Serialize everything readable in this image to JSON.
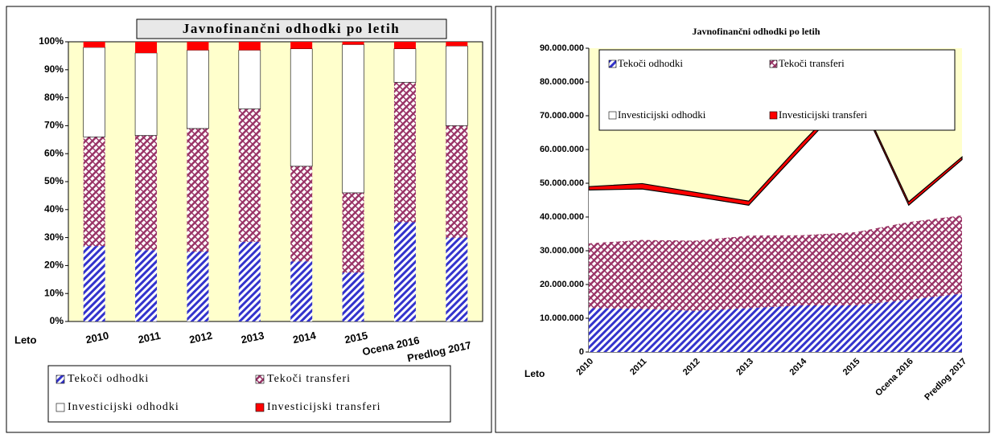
{
  "chart_data": [
    {
      "type": "bar",
      "stacked": true,
      "title": "Javnofinančni odhodki po letih",
      "x_label": "Leto",
      "categories": [
        "2010",
        "2011",
        "2012",
        "2013",
        "2014",
        "2015",
        "Ocena 2016",
        "Predlog 2017"
      ],
      "series": [
        {
          "name": "Tekoči odhodki",
          "color": "#3333cc",
          "pattern": "hatch",
          "values": [
            27,
            25.5,
            25,
            28.5,
            21.5,
            17.5,
            35.5,
            30
          ]
        },
        {
          "name": "Tekoči transferi",
          "color": "#993366",
          "pattern": "crosshatch",
          "values": [
            39,
            41,
            44,
            47.5,
            34,
            28.5,
            50,
            40
          ]
        },
        {
          "name": "Investicijski odhodki",
          "color": "#ffffff",
          "pattern": "solid",
          "values": [
            32,
            29.5,
            28,
            21,
            42,
            53,
            12,
            28.5
          ]
        },
        {
          "name": "Investicijski transferi",
          "color": "#ff0000",
          "pattern": "solid",
          "values": [
            2,
            4,
            3,
            3,
            2.5,
            1,
            2.5,
            1.5
          ]
        }
      ],
      "ylim": [
        0,
        100
      ],
      "yticks": [
        {
          "value": 0,
          "label": "0%"
        },
        {
          "value": 10,
          "label": "10%"
        },
        {
          "value": 20,
          "label": "20%"
        },
        {
          "value": 30,
          "label": "30%"
        },
        {
          "value": 40,
          "label": "40%"
        },
        {
          "value": 50,
          "label": "50%"
        },
        {
          "value": 60,
          "label": "60%"
        },
        {
          "value": 70,
          "label": "70%"
        },
        {
          "value": 80,
          "label": "80%"
        },
        {
          "value": 90,
          "label": "90%"
        },
        {
          "value": 100,
          "label": "100%"
        }
      ],
      "background": "#ffffcc"
    },
    {
      "type": "area",
      "stacked": true,
      "title": "Javnofinančni odhodki po letih",
      "x_label": "Leto",
      "categories": [
        "2010",
        "2011",
        "2012",
        "2013",
        "2014",
        "2015",
        "Ocena 2016",
        "Predlog 2017"
      ],
      "series": [
        {
          "name": "Tekoči odhodki",
          "color": "#3333cc",
          "pattern": "hatch",
          "values": [
            13000000,
            12800000,
            12200000,
            13000000,
            13800000,
            13800000,
            15500000,
            17300000
          ]
        },
        {
          "name": "Tekoči transferi",
          "color": "#993366",
          "pattern": "crosshatch",
          "values": [
            19200000,
            20400000,
            20800000,
            21500000,
            20800000,
            21700000,
            23000000,
            23200000
          ]
        },
        {
          "name": "Investicijski odhodki",
          "color": "#ffffff",
          "pattern": "solid",
          "values": [
            15800000,
            15100000,
            13000000,
            9000000,
            25900000,
            42000000,
            5000000,
            16500000
          ]
        },
        {
          "name": "Investicijski transferi",
          "color": "#ff0000",
          "pattern": "solid",
          "values": [
            1000000,
            1600000,
            1300000,
            1200000,
            1500000,
            800000,
            1000000,
            800000
          ]
        }
      ],
      "ylim": [
        0,
        90000000
      ],
      "yticks": [
        0,
        {
          "value": 10000000,
          "label": "10.000.000"
        },
        {
          "value": 20000000,
          "label": "20.000.000"
        },
        {
          "value": 30000000,
          "label": "30.000.000"
        },
        {
          "value": 40000000,
          "label": "40.000.000"
        },
        {
          "value": 50000000,
          "label": "50.000.000"
        },
        {
          "value": 60000000,
          "label": "60.000.000"
        },
        {
          "value": 70000000,
          "label": "70.000.000"
        },
        {
          "value": 80000000,
          "label": "80.000.000"
        },
        {
          "value": 90000000,
          "label": "90.000.000"
        }
      ],
      "background": "#ffffcc"
    }
  ]
}
